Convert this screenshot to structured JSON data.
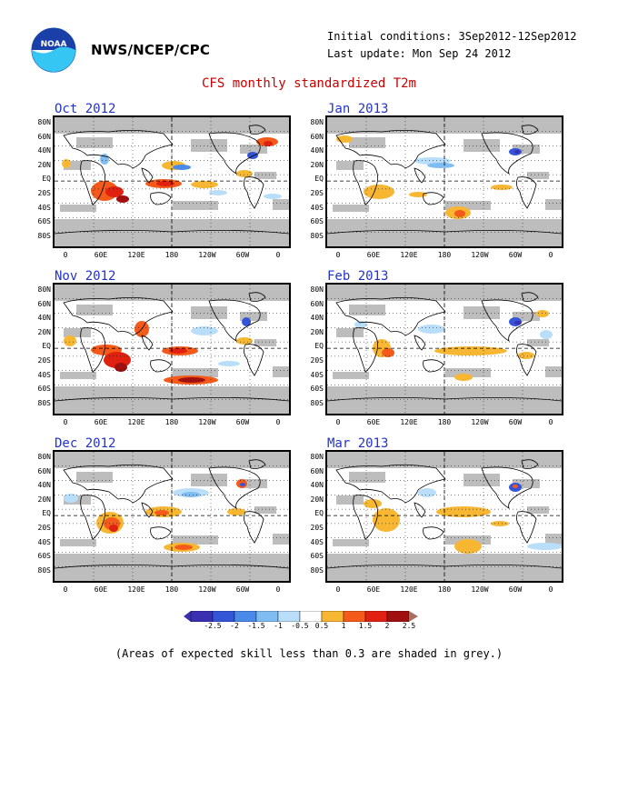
{
  "header": {
    "org": "NWS/NCEP/CPC",
    "initial_conditions": "Initial conditions: 3Sep2012-12Sep2012",
    "last_update": "Last update: Mon Sep 24 2012",
    "title": "CFS monthly standardized T2m",
    "logo_text": "NOAA"
  },
  "lat_labels": [
    "80N",
    "60N",
    "40N",
    "20N",
    "EQ",
    "20S",
    "40S",
    "60S",
    "80S"
  ],
  "lon_labels": [
    "0",
    "60E",
    "120E",
    "180",
    "120W",
    "60W",
    "0"
  ],
  "panels": [
    {
      "label": "Oct 2012"
    },
    {
      "label": "Jan 2013"
    },
    {
      "label": "Nov 2012"
    },
    {
      "label": "Feb 2013"
    },
    {
      "label": "Dec 2012"
    },
    {
      "label": "Mar 2013"
    }
  ],
  "colorbar": {
    "levels": [
      "-2.5",
      "-2",
      "-1.5",
      "-1",
      "-0.5",
      "0.5",
      "1",
      "1.5",
      "2",
      "2.5"
    ],
    "colors": [
      "#3a2fb0",
      "#3555d8",
      "#4a8ae8",
      "#7fbcf2",
      "#b8defa",
      "#ffffff",
      "#f7b733",
      "#f45a1a",
      "#e02010",
      "#a01010",
      "#a87060"
    ]
  },
  "note": "(Areas of expected skill less than 0.3 are shaded in grey.)",
  "colors": {
    "title": "#cc0000",
    "panel_title": "#2233cc",
    "grey_shade": "#bdbdbd"
  }
}
